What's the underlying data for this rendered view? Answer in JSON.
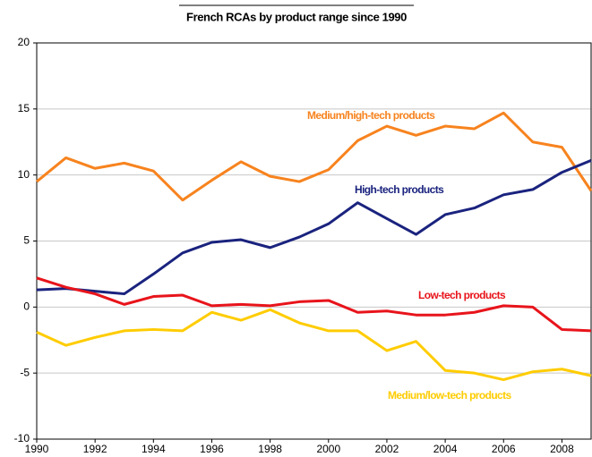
{
  "chart_data": {
    "type": "line",
    "title": "French RCAs by product range since 1990",
    "x": [
      1990,
      1991,
      1992,
      1993,
      1994,
      1995,
      1996,
      1997,
      1998,
      1999,
      2000,
      2001,
      2002,
      2003,
      2004,
      2005,
      2006,
      2007,
      2008,
      2009
    ],
    "series": [
      {
        "name": "Medium/high-tech products",
        "color": "#f7831e",
        "values": [
          9.5,
          11.3,
          10.5,
          10.9,
          10.3,
          8.1,
          9.6,
          11.0,
          9.9,
          9.5,
          10.4,
          12.6,
          13.7,
          13.0,
          13.7,
          13.5,
          14.7,
          12.5,
          12.1,
          8.8
        ]
      },
      {
        "name": "High-tech products",
        "color": "#1a237e",
        "values": [
          1.3,
          1.4,
          1.2,
          1.0,
          2.5,
          4.1,
          4.9,
          5.1,
          4.5,
          5.3,
          6.3,
          7.9,
          6.7,
          5.5,
          7.0,
          7.5,
          8.5,
          8.9,
          10.2,
          11.1
        ]
      },
      {
        "name": "Low-tech products",
        "color": "#e8141b",
        "values": [
          2.2,
          1.5,
          1.0,
          0.2,
          0.8,
          0.9,
          0.1,
          0.2,
          0.1,
          0.4,
          0.5,
          -0.4,
          -0.3,
          -0.6,
          -0.6,
          -0.4,
          0.1,
          0.0,
          -1.7,
          -1.8
        ]
      },
      {
        "name": "Medium/low-tech products",
        "color": "#ffcc00",
        "values": [
          -1.9,
          -2.9,
          -2.3,
          -1.8,
          -1.7,
          -1.8,
          -0.4,
          -1.0,
          -0.2,
          -1.2,
          -1.8,
          -1.8,
          -3.3,
          -2.6,
          -4.8,
          -5.0,
          -5.5,
          -4.9,
          -4.7,
          -5.2
        ]
      }
    ],
    "xlim": [
      1990,
      2009
    ],
    "xticks": [
      1990,
      1992,
      1994,
      1996,
      1998,
      2000,
      2002,
      2004,
      2006,
      2008
    ],
    "ylim": [
      -10,
      20
    ],
    "yticks": [
      -10,
      -5,
      0,
      5,
      10,
      15,
      20
    ],
    "grid": true
  }
}
